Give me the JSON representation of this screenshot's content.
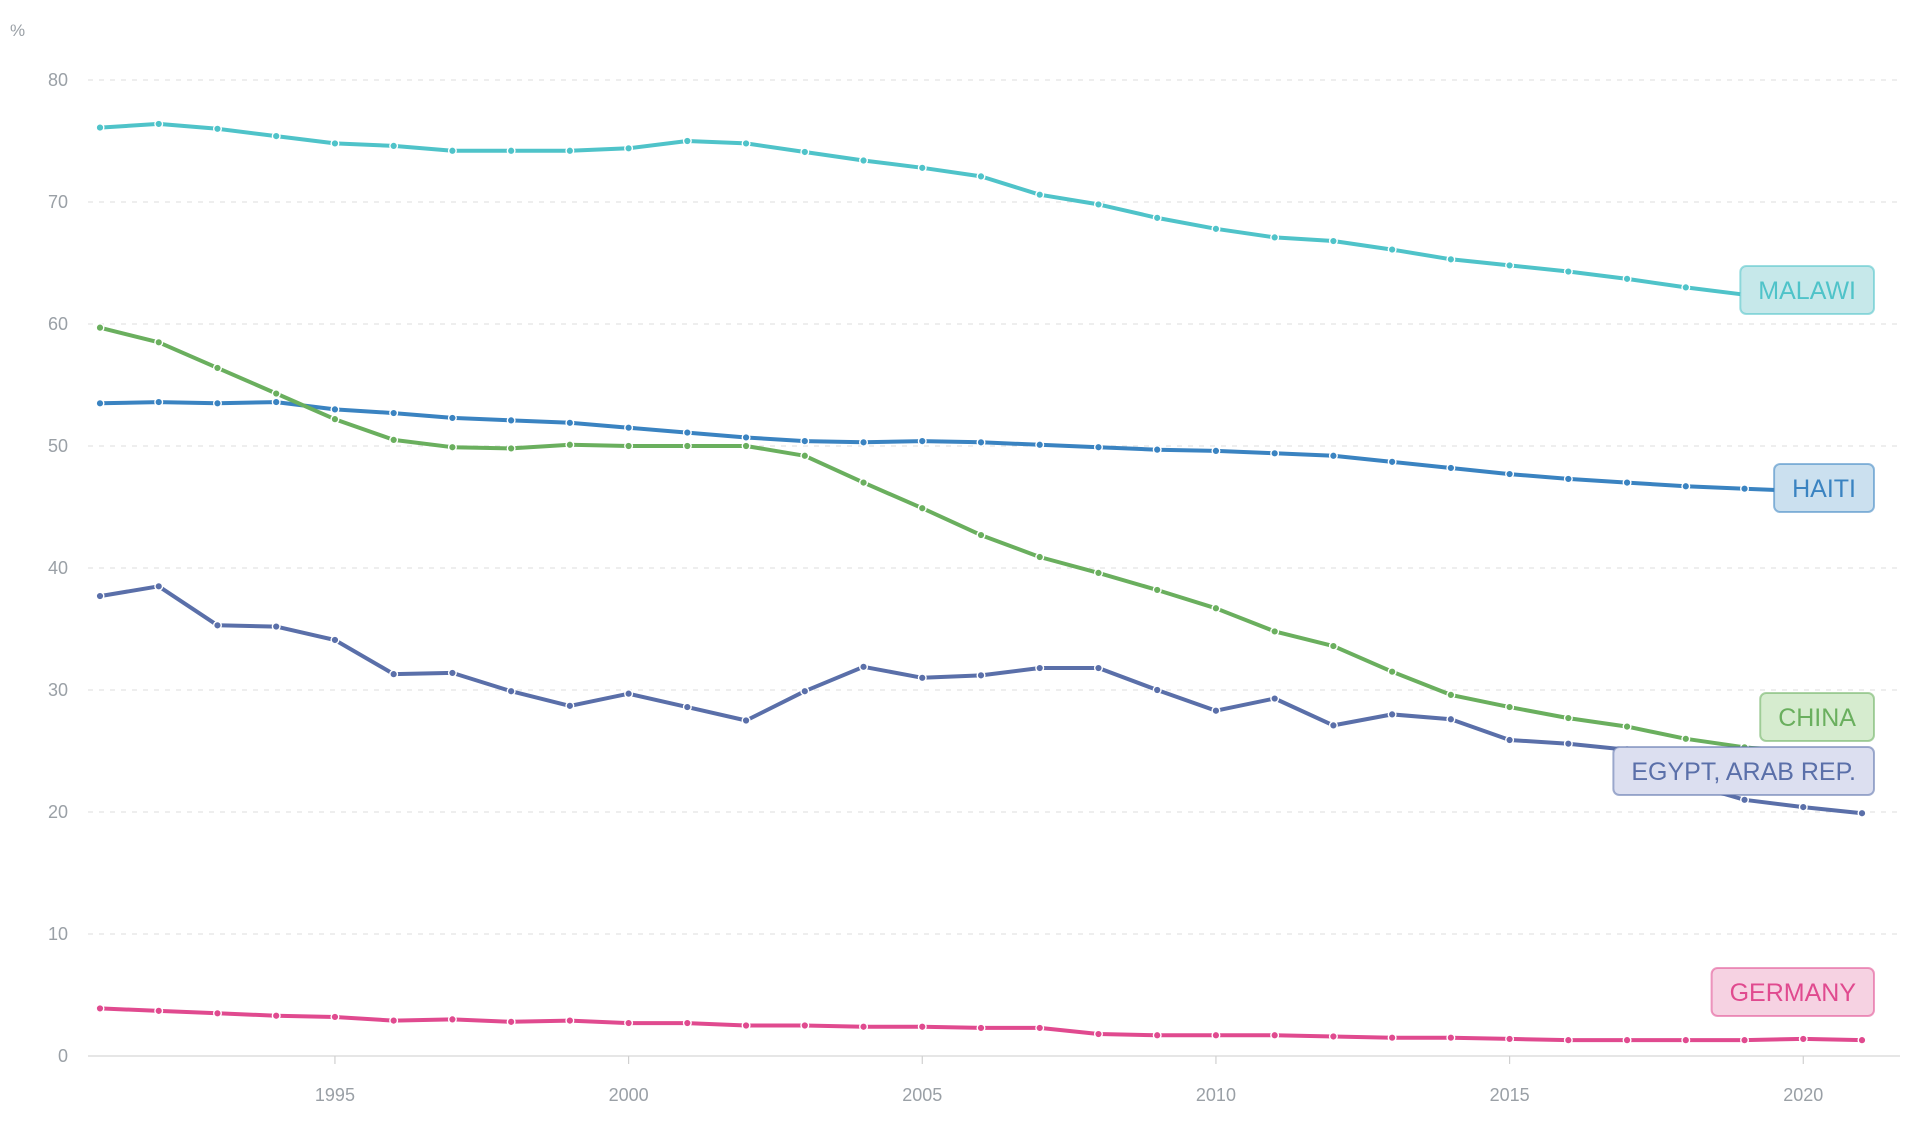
{
  "chart_data": {
    "type": "line",
    "unit_label": "%",
    "title": "",
    "xlabel": "",
    "ylabel": "",
    "xlim": [
      1991,
      2021
    ],
    "ylim": [
      0,
      80
    ],
    "x_ticks": [
      1995,
      2000,
      2005,
      2010,
      2015,
      2020
    ],
    "y_ticks": [
      0,
      10,
      20,
      30,
      40,
      50,
      60,
      70,
      80
    ],
    "grid": "horizontal-dashed",
    "legend": "inline-right",
    "x": [
      1991,
      1992,
      1993,
      1994,
      1995,
      1996,
      1997,
      1998,
      1999,
      2000,
      2001,
      2002,
      2003,
      2004,
      2005,
      2006,
      2007,
      2008,
      2009,
      2010,
      2011,
      2012,
      2013,
      2014,
      2015,
      2016,
      2017,
      2018,
      2019,
      2020,
      2021
    ],
    "series": [
      {
        "name": "MALAWI",
        "color": "#4fc3c9",
        "label_bg": "#c6e8ea",
        "values": [
          76.1,
          76.4,
          76.0,
          75.4,
          74.8,
          74.6,
          74.2,
          74.2,
          74.2,
          74.4,
          75.0,
          74.8,
          74.1,
          73.4,
          72.8,
          72.1,
          70.6,
          69.8,
          68.7,
          67.8,
          67.1,
          66.8,
          66.1,
          65.3,
          64.8,
          64.3,
          63.7,
          63.0,
          62.4,
          62.5,
          61.9
        ]
      },
      {
        "name": "HAITI",
        "color": "#3a83c1",
        "label_bg": "#cbe0ef",
        "values": [
          53.5,
          53.6,
          53.5,
          53.6,
          53.0,
          52.7,
          52.3,
          52.1,
          51.9,
          51.5,
          51.1,
          50.7,
          50.4,
          50.3,
          50.4,
          50.3,
          50.1,
          49.9,
          49.7,
          49.6,
          49.4,
          49.2,
          48.7,
          48.2,
          47.7,
          47.3,
          47.0,
          46.7,
          46.5,
          46.3,
          45.6
        ]
      },
      {
        "name": "CHINA",
        "color": "#6aaf5e",
        "label_bg": "#d6eccf",
        "values": [
          59.7,
          58.5,
          56.4,
          54.3,
          52.2,
          50.5,
          49.9,
          49.8,
          50.1,
          50.0,
          50.0,
          50.0,
          49.2,
          47.0,
          44.9,
          42.7,
          40.9,
          39.6,
          38.2,
          36.7,
          34.8,
          33.6,
          31.5,
          29.6,
          28.6,
          27.7,
          27.0,
          26.0,
          25.3,
          24.8,
          24.3
        ]
      },
      {
        "name": "EGYPT, ARAB REP.",
        "color": "#5a6fa9",
        "label_bg": "#dcdff0",
        "values": [
          37.7,
          38.5,
          35.3,
          35.2,
          34.1,
          31.3,
          31.4,
          29.9,
          28.7,
          29.7,
          28.6,
          27.5,
          29.9,
          31.9,
          31.0,
          31.2,
          31.8,
          31.8,
          30.0,
          28.3,
          29.3,
          27.1,
          28.0,
          27.6,
          25.9,
          25.6,
          25.1,
          22.4,
          21.0,
          20.4,
          19.9
        ]
      },
      {
        "name": "GERMANY",
        "color": "#e04a8f",
        "label_bg": "#f6d2e2",
        "values": [
          3.9,
          3.7,
          3.5,
          3.3,
          3.2,
          2.9,
          3.0,
          2.8,
          2.9,
          2.7,
          2.7,
          2.5,
          2.5,
          2.4,
          2.4,
          2.3,
          2.3,
          1.8,
          1.7,
          1.7,
          1.7,
          1.6,
          1.5,
          1.5,
          1.4,
          1.3,
          1.3,
          1.3,
          1.3,
          1.4,
          1.3
        ]
      }
    ]
  }
}
